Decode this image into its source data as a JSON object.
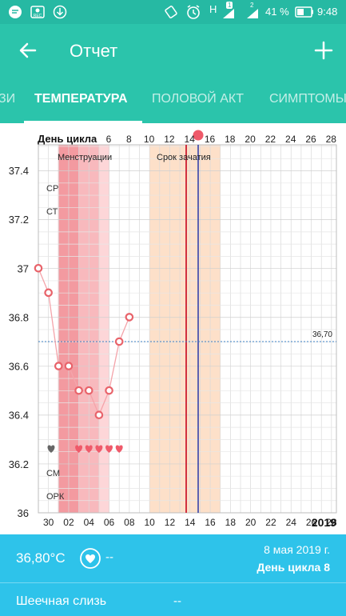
{
  "status_bar": {
    "battery_percent": "41 %",
    "time": "9:48",
    "net_1": "H",
    "net_1_badge": "1",
    "net_2_badge": "2"
  },
  "app_bar": {
    "title": "Отчет"
  },
  "tabs": [
    {
      "label": "ЗАМЕТКИ",
      "visible_text": "ЗИ",
      "selected": false
    },
    {
      "label": "ТЕМПЕРАТУРА",
      "visible_text": "ТЕМПЕРАТУРА",
      "selected": true
    },
    {
      "label": "ПОЛОВОЙ АКТ",
      "visible_text": "ПОЛОВОЙ АКТ",
      "selected": false
    },
    {
      "label": "СИМПТОМЫ",
      "visible_text": "СИМПТОМЫ",
      "selected": false
    }
  ],
  "colors": {
    "header": "#2bc4ab",
    "accent_blue": "#2ec3ea",
    "point": "#e8636a",
    "menstruation": "#f39aa0",
    "fertile": "#fde0c9",
    "today_line": "#1a2ea6",
    "ovulation_line": "#d03040"
  },
  "chart_data": {
    "type": "line",
    "title": "",
    "xlabel": "День цикла",
    "ylabel": "",
    "ylim": [
      36,
      37.5
    ],
    "y_ticks": [
      "36",
      "36.2",
      "36.4",
      "36.6",
      "36.8",
      "37",
      "37.2",
      "37.4"
    ],
    "cycle_day_ticks": [
      "6",
      "8",
      "10",
      "12",
      "14",
      "16",
      "18",
      "20",
      "22",
      "24",
      "26",
      "28"
    ],
    "date_ticks": [
      "30",
      "02",
      "04",
      "06",
      "08",
      "10",
      "12",
      "14",
      "16",
      "18",
      "20",
      "22",
      "24",
      "26",
      "28"
    ],
    "year": "2019",
    "series": [
      {
        "x_dates": [
          "29",
          "30",
          "01",
          "02",
          "03",
          "04",
          "05",
          "06",
          "07",
          "08"
        ],
        "values": [
          37.0,
          36.9,
          36.6,
          36.6,
          36.5,
          36.5,
          36.4,
          36.5,
          36.7,
          36.8
        ]
      }
    ],
    "reference_line": {
      "value": 36.7,
      "label": "36,70"
    },
    "bands": [
      {
        "label": "Менструации",
        "from_date": "01",
        "to_date": "06"
      },
      {
        "label": "Срок зачатия",
        "from_date": "10",
        "to_date": "17"
      }
    ],
    "side_labels": [
      "СР",
      "СТ",
      "СМ",
      "ОРК"
    ],
    "heart_markers_dates": [
      "28",
      "03",
      "04",
      "05",
      "06",
      "07"
    ]
  },
  "summary": {
    "temperature": "36,80°C",
    "dash": "--",
    "date": "8 мая 2019 г.",
    "cycle_day": "День цикла 8"
  },
  "cervical": {
    "label": "Шеечная слизь",
    "value": "--"
  }
}
